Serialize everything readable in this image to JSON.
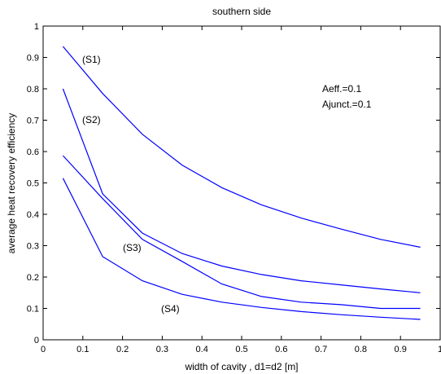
{
  "chart_data": {
    "type": "line",
    "title": "southern side",
    "xlabel": "width of cavity , d1=d2 [m]",
    "ylabel": "average heat recovery efficiency",
    "xlim": [
      0,
      1
    ],
    "ylim": [
      0,
      1
    ],
    "x_ticks": [
      "0",
      "0.1",
      "0.2",
      "0.3",
      "0.4",
      "0.5",
      "0.6",
      "0.7",
      "0.8",
      "0.9",
      "1"
    ],
    "y_ticks": [
      "0",
      "0.1",
      "0.2",
      "0.3",
      "0.4",
      "0.5",
      "0.6",
      "0.7",
      "0.8",
      "0.9",
      "1"
    ],
    "grid": false,
    "line_color": "#0000ff",
    "x": [
      0.05,
      0.15,
      0.25,
      0.35,
      0.45,
      0.55,
      0.65,
      0.75,
      0.85,
      0.95
    ],
    "series": [
      {
        "name": "(S1)",
        "values": [
          0.935,
          0.785,
          0.655,
          0.557,
          0.485,
          0.43,
          0.388,
          0.353,
          0.32,
          0.295
        ]
      },
      {
        "name": "(S2)",
        "values": [
          0.8,
          0.465,
          0.34,
          0.275,
          0.235,
          0.208,
          0.188,
          0.175,
          0.162,
          0.15
        ]
      },
      {
        "name": "(S3)",
        "values": [
          0.587,
          0.45,
          0.32,
          0.25,
          0.178,
          0.138,
          0.12,
          0.112,
          0.1,
          0.1
        ]
      },
      {
        "name": "(S4)",
        "values": [
          0.515,
          0.265,
          0.188,
          0.145,
          0.12,
          0.103,
          0.09,
          0.08,
          0.072,
          0.065
        ]
      }
    ],
    "annotations": [
      "Aeff.=0.1",
      "Ajunct.=0.1"
    ]
  }
}
